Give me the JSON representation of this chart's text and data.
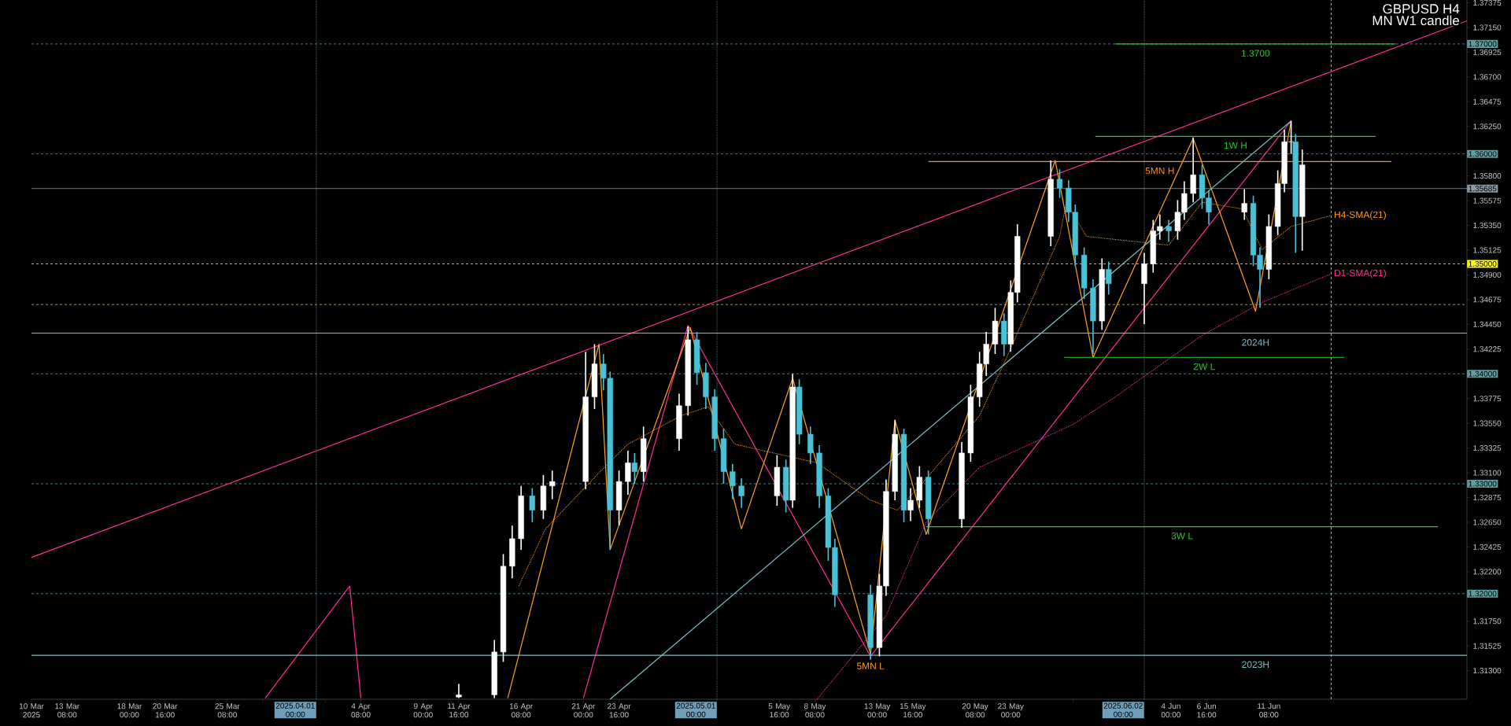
{
  "chart_data": {
    "type": "candlestick",
    "title": "GBPUSD H4",
    "subtitle": "MN W1 candle",
    "x": [
      "2025-04-11T16:00",
      "2025-04-14T08:00",
      "2025-04-15T00:00",
      "2025-04-15T16:00",
      "2025-04-16T08:00",
      "2025-04-17T04:00",
      "2025-04-18T00:00",
      "2025-04-18T16:00",
      "2025-04-21T04:00",
      "2025-04-21T20:00",
      "2025-04-22T12:00",
      "2025-04-23T00:00",
      "2025-04-23T16:00",
      "2025-04-24T08:00",
      "2025-04-24T20:00",
      "2025-04-25T12:00",
      "2025-04-28T04:00",
      "2025-04-28T20:00",
      "2025-04-29T12:00",
      "2025-04-30T04:00",
      "2025-04-30T20:00",
      "2025-05-01T12:00",
      "2025-05-02T04:00",
      "2025-05-02T20:00",
      "2025-05-05T12:00",
      "2025-05-06T04:00",
      "2025-05-06T16:00",
      "2025-05-07T04:00",
      "2025-05-08T00:00",
      "2025-05-08T16:00",
      "2025-05-09T08:00",
      "2025-05-09T20:00",
      "2025-05-12T12:00",
      "2025-05-13T04:00",
      "2025-05-13T16:00",
      "2025-05-14T08:00",
      "2025-05-15T00:00",
      "2025-05-15T12:00",
      "2025-05-16T04:00",
      "2025-05-16T20:00",
      "2025-05-19T08:00",
      "2025-05-20T00:00",
      "2025-05-20T16:00",
      "2025-05-21T04:00",
      "2025-05-21T20:00",
      "2025-05-22T12:00",
      "2025-05-23T00:00",
      "2025-05-23T12:00",
      "2025-05-26T00:00",
      "2025-05-26T16:00",
      "2025-05-27T08:00",
      "2025-05-27T20:00",
      "2025-05-28T12:00",
      "2025-05-29T04:00",
      "2025-05-29T20:00",
      "2025-05-30T08:00",
      "2025-06-02T00:00",
      "2025-06-02T16:00",
      "2025-06-03T04:00",
      "2025-06-03T20:00",
      "2025-06-04T12:00",
      "2025-06-05T00:00",
      "2025-06-05T16:00",
      "2025-06-06T08:00",
      "2025-06-06T20:00",
      "2025-06-09T12:00",
      "2025-06-10T04:00",
      "2025-06-10T16:00",
      "2025-06-11T08:00",
      "2025-06-12T00:00",
      "2025-06-12T12:00",
      "2025-06-13T00:00",
      "2025-06-13T08:00",
      "2025-06-13T20:00"
    ],
    "ohlc": [
      [
        1.3106,
        1.3118,
        1.3105,
        1.3108
      ],
      [
        1.3108,
        1.3158,
        1.3105,
        1.3147
      ],
      [
        1.3147,
        1.3236,
        1.3138,
        1.3225
      ],
      [
        1.3225,
        1.3262,
        1.3214,
        1.325
      ],
      [
        1.325,
        1.3298,
        1.324,
        1.3289
      ],
      [
        1.3289,
        1.3296,
        1.3265,
        1.3276
      ],
      [
        1.3276,
        1.3308,
        1.3268,
        1.3298
      ],
      [
        1.3298,
        1.3312,
        1.3286,
        1.3302
      ],
      [
        1.3302,
        1.342,
        1.3295,
        1.3379
      ],
      [
        1.3379,
        1.3427,
        1.3368,
        1.3409
      ],
      [
        1.3409,
        1.3418,
        1.3385,
        1.3396
      ],
      [
        1.3396,
        1.3402,
        1.324,
        1.3276
      ],
      [
        1.3276,
        1.3312,
        1.3262,
        1.3302
      ],
      [
        1.3302,
        1.333,
        1.329,
        1.3319
      ],
      [
        1.3319,
        1.3328,
        1.33,
        1.3311
      ],
      [
        1.3311,
        1.3352,
        1.3302,
        1.3341
      ],
      [
        1.3341,
        1.3382,
        1.333,
        1.3371
      ],
      [
        1.3371,
        1.3443,
        1.3362,
        1.3431
      ],
      [
        1.3431,
        1.3438,
        1.339,
        1.3401
      ],
      [
        1.3401,
        1.341,
        1.3368,
        1.3379
      ],
      [
        1.3379,
        1.3386,
        1.333,
        1.3341
      ],
      [
        1.3341,
        1.335,
        1.33,
        1.3311
      ],
      [
        1.3311,
        1.3318,
        1.3286,
        1.3298
      ],
      [
        1.3298,
        1.3305,
        1.3278,
        1.3289
      ],
      [
        1.3289,
        1.3326,
        1.328,
        1.3315
      ],
      [
        1.3315,
        1.3322,
        1.3274,
        1.3285
      ],
      [
        1.3285,
        1.34,
        1.3278,
        1.3388
      ],
      [
        1.3388,
        1.3395,
        1.3336,
        1.3345
      ],
      [
        1.3345,
        1.3352,
        1.3318,
        1.3328
      ],
      [
        1.3328,
        1.3335,
        1.3278,
        1.3289
      ],
      [
        1.3289,
        1.3296,
        1.323,
        1.3242
      ],
      [
        1.3242,
        1.325,
        1.3188,
        1.3199
      ],
      [
        1.3199,
        1.3208,
        1.314,
        1.3151
      ],
      [
        1.3151,
        1.3218,
        1.3143,
        1.3207
      ],
      [
        1.3207,
        1.3304,
        1.3198,
        1.3293
      ],
      [
        1.3293,
        1.3358,
        1.3285,
        1.3345
      ],
      [
        1.3345,
        1.335,
        1.3265,
        1.3276
      ],
      [
        1.3276,
        1.3296,
        1.3266,
        1.3285
      ],
      [
        1.3285,
        1.3316,
        1.3278,
        1.3306
      ],
      [
        1.3306,
        1.3312,
        1.3254,
        1.3268
      ],
      [
        1.3268,
        1.3338,
        1.326,
        1.3328
      ],
      [
        1.3328,
        1.339,
        1.332,
        1.3379
      ],
      [
        1.3379,
        1.342,
        1.337,
        1.3409
      ],
      [
        1.3409,
        1.3438,
        1.3398,
        1.3427
      ],
      [
        1.3427,
        1.346,
        1.3418,
        1.3448
      ],
      [
        1.3448,
        1.3455,
        1.3416,
        1.3427
      ],
      [
        1.3427,
        1.3485,
        1.342,
        1.3474
      ],
      [
        1.3474,
        1.3536,
        1.3465,
        1.3525
      ],
      [
        1.3525,
        1.3594,
        1.3516,
        1.3577
      ],
      [
        1.3577,
        1.3586,
        1.356,
        1.3569
      ],
      [
        1.3569,
        1.3576,
        1.3538,
        1.3547
      ],
      [
        1.3547,
        1.3554,
        1.3498,
        1.3508
      ],
      [
        1.3508,
        1.3515,
        1.3468,
        1.3478
      ],
      [
        1.3478,
        1.3486,
        1.3418,
        1.3448
      ],
      [
        1.3448,
        1.3505,
        1.344,
        1.3495
      ],
      [
        1.3495,
        1.3502,
        1.3472,
        1.3482
      ],
      [
        1.3482,
        1.351,
        1.3445,
        1.35
      ],
      [
        1.35,
        1.354,
        1.3492,
        1.353
      ],
      [
        1.353,
        1.3545,
        1.3522,
        1.3534
      ],
      [
        1.3534,
        1.354,
        1.352,
        1.353
      ],
      [
        1.353,
        1.3558,
        1.3522,
        1.3547
      ],
      [
        1.3547,
        1.3575,
        1.354,
        1.3564
      ],
      [
        1.3564,
        1.3615,
        1.3556,
        1.3581
      ],
      [
        1.3581,
        1.359,
        1.355,
        1.356
      ],
      [
        1.356,
        1.3567,
        1.3536,
        1.3547
      ],
      [
        1.3547,
        1.3568,
        1.354,
        1.3555
      ],
      [
        1.3555,
        1.3562,
        1.3498,
        1.3508
      ],
      [
        1.3508,
        1.3515,
        1.346,
        1.3495
      ],
      [
        1.3495,
        1.3545,
        1.3486,
        1.3534
      ],
      [
        1.3534,
        1.3585,
        1.3526,
        1.3573
      ],
      [
        1.3573,
        1.3622,
        1.3565,
        1.3611
      ],
      [
        1.3611,
        1.363,
        1.36,
        1.3611
      ],
      [
        1.3611,
        1.3618,
        1.351,
        1.3543
      ],
      [
        1.3543,
        1.3604,
        1.3512,
        1.359
      ]
    ],
    "colors": [
      "#ffffff",
      "#ffffff",
      "#ffffff",
      "#ffffff",
      "#ffffff",
      "#49c2d8",
      "#ffffff",
      "#ffffff",
      "#ffffff",
      "#ffffff",
      "#49c2d8",
      "#49c2d8",
      "#ffffff",
      "#ffffff",
      "#49c2d8",
      "#ffffff",
      "#ffffff",
      "#ffffff",
      "#49c2d8",
      "#49c2d8",
      "#49c2d8",
      "#49c2d8",
      "#49c2d8",
      "#49c2d8",
      "#ffffff",
      "#49c2d8",
      "#ffffff",
      "#49c2d8",
      "#49c2d8",
      "#49c2d8",
      "#49c2d8",
      "#49c2d8",
      "#49c2d8",
      "#ffffff",
      "#ffffff",
      "#ffffff",
      "#49c2d8",
      "#ffffff",
      "#ffffff",
      "#49c2d8",
      "#ffffff",
      "#ffffff",
      "#ffffff",
      "#ffffff",
      "#ffffff",
      "#49c2d8",
      "#ffffff",
      "#ffffff",
      "#ffffff",
      "#49c2d8",
      "#49c2d8",
      "#49c2d8",
      "#49c2d8",
      "#49c2d8",
      "#ffffff",
      "#49c2d8",
      "#ffffff",
      "#ffffff",
      "#ffffff",
      "#49c2d8",
      "#ffffff",
      "#ffffff",
      "#ffffff",
      "#49c2d8",
      "#49c2d8",
      "#ffffff",
      "#49c2d8",
      "#49c2d8",
      "#ffffff",
      "#ffffff",
      "#ffffff",
      "#ffffff",
      "#49c2d8",
      "#ffffff"
    ],
    "series": [
      {
        "type": "line",
        "color": "#ff2d95",
        "x": [
          "2025-03-10T16:00",
          "2025-06-26T04:00"
        ],
        "values": [
          1.3233,
          1.3721
        ]
      },
      {
        "type": "line",
        "color": "#ff2d95",
        "x": [
          "2025-05-12T12:00",
          "2025-06-13T00:00"
        ],
        "values": [
          1.3143,
          1.363
        ]
      },
      {
        "type": "line",
        "color": "#ff2d95",
        "x": [
          "2025-03-28T04:00",
          "2025-04-03T12:00",
          "2025-04-04T08:00"
        ],
        "values": [
          1.3105,
          1.3207,
          1.3105
        ]
      },
      {
        "type": "line",
        "color": "#ff2d95",
        "x": [
          "2025-04-21T00:00",
          "2025-04-28T20:00",
          "2025-05-12T12:00"
        ],
        "values": [
          1.3105,
          1.3444,
          1.3143
        ]
      },
      {
        "type": "line",
        "color": "#ffa31a",
        "x": [
          "2025-04-15T08:00",
          "2025-04-22T04:00",
          "2025-04-23T00:00",
          "2025-04-29T00:00",
          "2025-05-02T20:00",
          "2025-05-06T16:00",
          "2025-05-12T12:00",
          "2025-05-14T08:00",
          "2025-05-16T16:00",
          "2025-05-26T08:00",
          "2025-05-29T04:00",
          "2025-06-05T16:00",
          "2025-06-10T08:00",
          "2025-06-13T00:00"
        ],
        "values": [
          1.3105,
          1.3427,
          1.324,
          1.3442,
          1.3259,
          1.3396,
          1.3145,
          1.3358,
          1.3254,
          1.3594,
          1.3415,
          1.3614,
          1.3457,
          1.363
        ]
      },
      {
        "type": "line",
        "color": "#7fbfc8",
        "x": [
          "2025-04-23T00:00",
          "2025-06-13T00:00"
        ],
        "values": [
          1.3104,
          1.363
        ]
      },
      {
        "type": "line",
        "name": "H4-SMA(21)",
        "color": "#ff9a1a",
        "line_style": "dotted",
        "x": [
          "2025-04-16T04:00",
          "2025-04-18T04:00",
          "2025-04-22T04:00",
          "2025-04-24T08:00",
          "2025-04-28T08:00",
          "2025-04-30T08:00",
          "2025-05-02T08:00",
          "2025-05-06T12:00",
          "2025-05-08T12:00",
          "2025-05-12T12:00",
          "2025-05-14T12:00",
          "2025-05-16T12:00",
          "2025-05-20T16:00",
          "2025-05-22T16:00",
          "2025-05-26T16:00",
          "2025-05-27T04:00",
          "2025-05-28T16:00",
          "2025-05-30T08:00",
          "2025-06-03T20:00",
          "2025-06-06T08:00",
          "2025-06-09T08:00",
          "2025-06-10T20:00",
          "2025-06-13T00:00",
          "2025-06-16T00:00"
        ],
        "values": [
          1.3207,
          1.3259,
          1.331,
          1.3336,
          1.3362,
          1.337,
          1.3336,
          null,
          1.3319,
          1.3285,
          1.3276,
          1.3302,
          1.3362,
          1.3414,
          1.3525,
          1.3556,
          1.3525,
          null,
          1.3517,
          1.3556,
          1.355,
          1.3513,
          1.3534,
          1.3544
        ]
      },
      {
        "type": "line",
        "name": "D1-SMA(21)",
        "color": "#ff3399",
        "line_style": "dotted",
        "x": [
          "2025-05-08T12:00",
          "2025-05-13T16:00",
          "2025-05-16T16:00",
          "2025-05-20T16:00",
          "2025-05-27T16:00",
          "2025-05-30T20:00",
          "2025-06-06T08:00",
          "2025-06-10T20:00",
          "2025-06-16T00:00"
        ],
        "values": [
          1.3104,
          1.318,
          1.3265,
          1.3315,
          1.3354,
          1.3379,
          1.3435,
          1.3465,
          1.3491
        ]
      },
      {
        "type": "line",
        "name": "1.3700",
        "color": "#22cc22",
        "x": [
          "2025-05-30T20:00",
          "2025-06-20T20:00"
        ],
        "values": [
          1.37,
          1.37
        ]
      },
      {
        "type": "line",
        "name": "1W H",
        "color": "#22cc22",
        "x": [
          "2025-05-29T08:00",
          "2025-06-19T08:00"
        ],
        "values": [
          1.3616,
          1.3616
        ]
      },
      {
        "type": "line",
        "name": "5MN H",
        "color": "#ff8c1a",
        "x": [
          "2025-05-16T20:00",
          "2025-06-20T12:00"
        ],
        "values": [
          1.3593,
          1.3593
        ]
      },
      {
        "type": "line",
        "name": "2W L",
        "color": "#22cc22",
        "x": [
          "2025-05-27T00:00",
          "2025-06-17T00:00"
        ],
        "values": [
          1.3415,
          1.3415
        ]
      },
      {
        "type": "line",
        "name": "3W L",
        "color": "#22cc22",
        "x": [
          "2025-05-16T16:00",
          "2025-06-24T00:00"
        ],
        "values": [
          1.3261,
          1.3261
        ]
      },
      {
        "type": "line",
        "name": "2024H",
        "color": "#7fbfc8",
        "x": [
          "2025-03-10T16:00",
          "2025-06-10T08:00",
          "2025-06-26T04:00"
        ],
        "values": [
          1.3437,
          1.3437,
          1.3437
        ]
      },
      {
        "type": "line",
        "name": "2023H",
        "color": "#7fbfc8",
        "x": [
          "2025-03-10T16:00",
          "2025-06-10T08:00",
          "2025-06-26T04:00"
        ],
        "values": [
          1.3144,
          1.3144,
          1.3144
        ]
      }
    ],
    "xlim": [
      "2025-03-10T16:00",
      "2025-06-26T04:00"
    ],
    "ylim": [
      1.3104,
      1.374
    ],
    "xticks": [
      {
        "value": "2025-03-10T16:00",
        "label": "10 Mar 2025"
      },
      {
        "value": "2025-03-13T08:00",
        "label": "13 Mar 08:00"
      },
      {
        "value": "2025-03-18T00:00",
        "label": "18 Mar 00:00"
      },
      {
        "value": "2025-03-20T16:00",
        "label": "20 Mar 16:00"
      },
      {
        "value": "2025-03-25T08:00",
        "label": "25 Mar 08:00"
      },
      {
        "value": "2025-03-28T00:00",
        "label": null
      },
      {
        "value": "2025-04-01T16:00",
        "label": null
      },
      {
        "value": "2025-04-04T08:00",
        "label": "4 Apr 08:00"
      },
      {
        "value": "2025-04-09T00:00",
        "label": "9 Apr 00:00"
      },
      {
        "value": "2025-04-11T16:00",
        "label": "11 Apr 16:00"
      },
      {
        "value": "2025-04-16T08:00",
        "label": "16 Apr 08:00"
      },
      {
        "value": "2025-04-21T00:00",
        "label": "21 Apr 00:00"
      },
      {
        "value": "2025-04-23T16:00",
        "label": "23 Apr 16:00"
      },
      {
        "value": "2025-04-28T08:00",
        "label": null
      },
      {
        "value": "2025-05-01T00:00",
        "label": null
      },
      {
        "value": "2025-05-05T16:00",
        "label": "5 May 16:00"
      },
      {
        "value": "2025-05-08T08:00",
        "label": "8 May 08:00"
      },
      {
        "value": "2025-05-13T00:00",
        "label": "13 May 00:00"
      },
      {
        "value": "2025-05-15T16:00",
        "label": "15 May 16:00"
      },
      {
        "value": "2025-05-20T08:00",
        "label": "20 May 08:00"
      },
      {
        "value": "2025-05-23T00:00",
        "label": "23 May 00:00"
      },
      {
        "value": "2025-05-27T16:00",
        "label": null
      },
      {
        "value": "2025-05-30T08:00",
        "label": null
      },
      {
        "value": "2025-06-04T00:00",
        "label": "4 Jun 00:00"
      },
      {
        "value": "2025-06-06T16:00",
        "label": "6 Jun 16:00"
      },
      {
        "value": "2025-06-11T08:00",
        "label": "11 Jun 08:00"
      }
    ],
    "yticks": [
      {
        "value": 1.313,
        "label": "1.31300"
      },
      1.31525,
      {
        "value": 1.3175,
        "label": "1.31750"
      },
      {
        "value": 1.322,
        "label": "1.32200"
      },
      1.32425,
      {
        "value": 1.3265,
        "label": "1.32650"
      },
      1.32875,
      {
        "value": 1.331,
        "label": "1.33100"
      },
      1.33325,
      {
        "value": 1.3355,
        "label": "1.33550"
      },
      1.33775,
      1.34225,
      {
        "value": 1.3445,
        "label": "1.34450"
      },
      1.34675,
      {
        "value": 1.349,
        "label": "1.34900"
      },
      1.35125,
      {
        "value": 1.3535,
        "label": "1.35350"
      },
      1.35575,
      {
        "value": 1.358,
        "label": "1.35800"
      },
      {
        "value": 1.3625,
        "label": "1.36250"
      },
      1.36475,
      {
        "value": 1.367,
        "label": "1.36700"
      },
      1.36925,
      {
        "value": 1.3715,
        "label": "1.37150"
      },
      1.37375
    ],
    "ref_lines": [
      {
        "axis": "y",
        "value": 1.37,
        "label": "1.37000",
        "color": "#5f9ea0",
        "line_style": "dashed"
      },
      {
        "axis": "y",
        "value": 1.36,
        "label": "1.36000",
        "color": "#5f9ea0",
        "line_style": "dashed"
      },
      {
        "axis": "y",
        "value": 1.35685,
        "label": "1.35685",
        "color": "#8a9aa8",
        "line_style": "solid"
      },
      {
        "axis": "y",
        "value": 1.35,
        "label": "1.35000",
        "color": "#ffff00",
        "line_style": "dashed"
      },
      {
        "axis": "y",
        "value": 1.3463,
        "color": "#e0c020",
        "line_style": "dashed"
      },
      {
        "axis": "y",
        "value": 1.34,
        "label": "1.34000",
        "color": "#5f9ea0",
        "line_style": "dashed"
      },
      {
        "axis": "y",
        "value": 1.33,
        "label": "1.33000",
        "color": "#5f9ea0",
        "line_style": "dashed"
      },
      {
        "axis": "y",
        "value": 1.32,
        "label": "1.32000",
        "color": "#5f9ea0",
        "line_style": "dashed"
      },
      {
        "axis": "x",
        "value": "2025-04-01T00:00",
        "label": "2025.04.01 00:00",
        "color": "#6f9fb8",
        "line_style": "dotted"
      },
      {
        "axis": "x",
        "value": "2025-05-01T00:00",
        "label": "2025.05.01 00:00",
        "color": "#6f9fb8",
        "line_style": "dotted"
      },
      {
        "axis": "x",
        "value": "2025-06-02T00:00",
        "label": "2025.06.02 00:00",
        "color": "#6f9fb8",
        "line_style": "dotted"
      },
      {
        "axis": "x",
        "value": "2025-06-16T00:00",
        "color": "#d8d8d8",
        "line_style": "dashed"
      }
    ],
    "annotations": [
      {
        "text": "5MN L",
        "x": "2025-05-12T12:00",
        "y": 1.3144
      }
    ]
  }
}
